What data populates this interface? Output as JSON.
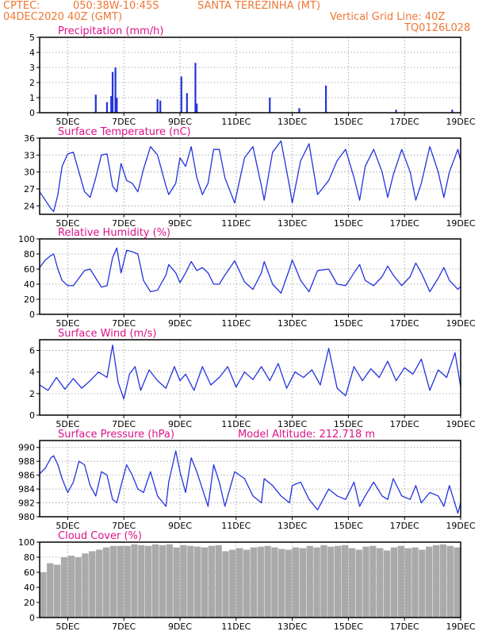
{
  "header": {
    "source": "CPTEC:",
    "coords": "050:38W-10:45S",
    "station": "SANTA TEREZINHA (MT)",
    "init": "04DEC2020 40Z (GMT)",
    "grid_note": "Vertical Grid Line: 40Z",
    "model": "TQ0126L028"
  },
  "colors": {
    "header": "#ee7733",
    "title": "#dd1188",
    "line": "#2233dd",
    "bar": "#2233dd",
    "cloud": "#aaaaaa",
    "grid": "#999999"
  },
  "x_axis": {
    "range": [
      4.0,
      19.0
    ],
    "tick_positions": [
      5,
      7,
      9,
      11,
      13,
      15,
      17,
      19
    ],
    "tick_labels": [
      "5DEC",
      "7DEC",
      "9DEC",
      "11DEC",
      "13DEC",
      "15DEC",
      "17DEC",
      "19DEC"
    ]
  },
  "chart_data": [
    {
      "type": "bar",
      "title": "Precipitation (mm/h)",
      "ylim": [
        0,
        5
      ],
      "yticks": [
        0,
        1,
        2,
        3,
        4,
        5
      ],
      "x": [
        6.0,
        6.4,
        6.55,
        6.6,
        6.7,
        6.75,
        8.2,
        8.3,
        9.05,
        9.25,
        9.55,
        9.6,
        12.2,
        13.25,
        14.2,
        16.7,
        18.7
      ],
      "values": [
        1.2,
        0.7,
        1.1,
        2.7,
        3.0,
        1.0,
        0.9,
        0.8,
        2.4,
        1.3,
        3.3,
        0.6,
        1.0,
        0.3,
        1.8,
        0.2,
        0.2
      ]
    },
    {
      "type": "line",
      "title": "Surface Temperature (nC)",
      "ylim": [
        22.5,
        36
      ],
      "yticks": [
        24,
        27,
        30,
        33,
        36
      ],
      "x": [
        4.0,
        4.2,
        4.4,
        4.5,
        4.65,
        4.8,
        5.0,
        5.2,
        5.4,
        5.6,
        5.8,
        6.0,
        6.2,
        6.4,
        6.6,
        6.75,
        6.9,
        7.1,
        7.3,
        7.5,
        7.7,
        7.95,
        8.2,
        8.5,
        8.6,
        8.85,
        9.0,
        9.2,
        9.4,
        9.6,
        9.8,
        10.0,
        10.2,
        10.4,
        10.6,
        10.95,
        11.3,
        11.6,
        11.9,
        12.0,
        12.3,
        12.6,
        12.9,
        13.0,
        13.3,
        13.6,
        13.9,
        14.3,
        14.6,
        14.9,
        15.2,
        15.4,
        15.6,
        15.9,
        16.2,
        16.4,
        16.6,
        16.9,
        17.2,
        17.4,
        17.6,
        17.9,
        18.2,
        18.4,
        18.6,
        18.9,
        19.0
      ],
      "values": [
        26.5,
        25.0,
        23.5,
        23.0,
        26.0,
        31.0,
        33.2,
        33.5,
        30.0,
        26.5,
        25.5,
        29.0,
        33.0,
        33.2,
        27.5,
        26.5,
        31.5,
        28.5,
        28.0,
        26.5,
        30.5,
        34.5,
        33.0,
        27.5,
        26.0,
        28.0,
        32.5,
        31.0,
        34.5,
        29.0,
        26.0,
        28.0,
        34.0,
        34.0,
        29.0,
        24.5,
        32.5,
        34.5,
        27.5,
        25.0,
        33.5,
        35.5,
        27.5,
        24.5,
        32.0,
        35.0,
        26.0,
        28.5,
        32.0,
        34.0,
        29.0,
        25.0,
        31.0,
        34.0,
        30.0,
        25.5,
        29.5,
        34.0,
        30.0,
        25.0,
        28.0,
        34.5,
        30.0,
        25.5,
        30.0,
        34.0,
        32.0
      ]
    },
    {
      "type": "line",
      "title": "Relative Humidity (%)",
      "ylim": [
        0,
        100
      ],
      "yticks": [
        0,
        20,
        40,
        60,
        80,
        100
      ],
      "x": [
        4.0,
        4.2,
        4.4,
        4.5,
        4.65,
        4.8,
        5.0,
        5.2,
        5.4,
        5.6,
        5.8,
        6.0,
        6.2,
        6.4,
        6.6,
        6.75,
        6.9,
        7.1,
        7.3,
        7.5,
        7.7,
        7.95,
        8.2,
        8.5,
        8.6,
        8.85,
        9.0,
        9.2,
        9.4,
        9.6,
        9.8,
        10.0,
        10.2,
        10.4,
        10.6,
        10.95,
        11.3,
        11.6,
        11.9,
        12.0,
        12.3,
        12.6,
        12.9,
        13.0,
        13.3,
        13.6,
        13.9,
        14.3,
        14.6,
        14.9,
        15.2,
        15.4,
        15.6,
        15.9,
        16.2,
        16.4,
        16.6,
        16.9,
        17.2,
        17.4,
        17.6,
        17.9,
        18.2,
        18.4,
        18.6,
        18.9,
        19.0
      ],
      "values": [
        62,
        72,
        78,
        80,
        60,
        45,
        38,
        38,
        48,
        58,
        60,
        48,
        36,
        38,
        75,
        88,
        55,
        85,
        83,
        80,
        45,
        30,
        32,
        52,
        66,
        55,
        42,
        55,
        70,
        58,
        62,
        55,
        40,
        40,
        52,
        71,
        43,
        33,
        55,
        70,
        40,
        28,
        60,
        72,
        45,
        30,
        58,
        60,
        40,
        38,
        55,
        66,
        45,
        38,
        50,
        64,
        52,
        38,
        50,
        68,
        55,
        30,
        48,
        62,
        45,
        33,
        37
      ]
    },
    {
      "type": "line",
      "title": "Surface Wind (m/s)",
      "ylim": [
        0,
        7
      ],
      "yticks": [
        0,
        2,
        4,
        6
      ],
      "x": [
        4.0,
        4.3,
        4.6,
        4.9,
        5.2,
        5.5,
        5.8,
        6.1,
        6.4,
        6.6,
        6.8,
        7.0,
        7.2,
        7.4,
        7.6,
        7.9,
        8.2,
        8.5,
        8.8,
        9.0,
        9.2,
        9.5,
        9.8,
        10.1,
        10.4,
        10.7,
        11.0,
        11.3,
        11.6,
        11.9,
        12.2,
        12.5,
        12.8,
        13.1,
        13.4,
        13.7,
        14.0,
        14.3,
        14.6,
        14.9,
        15.2,
        15.5,
        15.8,
        16.1,
        16.4,
        16.7,
        17.0,
        17.3,
        17.6,
        17.9,
        18.2,
        18.5,
        18.8,
        19.0
      ],
      "values": [
        2.8,
        2.3,
        3.5,
        2.4,
        3.4,
        2.5,
        3.2,
        4.0,
        3.5,
        6.5,
        3.0,
        1.5,
        3.8,
        4.5,
        2.3,
        4.2,
        3.2,
        2.5,
        4.5,
        3.2,
        3.8,
        2.3,
        4.5,
        2.8,
        3.5,
        4.5,
        2.6,
        4.0,
        3.3,
        4.5,
        3.2,
        4.8,
        2.5,
        4.0,
        3.5,
        4.2,
        2.8,
        6.2,
        2.5,
        1.8,
        4.5,
        3.2,
        4.3,
        3.5,
        5.0,
        3.2,
        4.4,
        3.8,
        5.2,
        2.3,
        4.2,
        3.5,
        5.8,
        2.6
      ]
    },
    {
      "type": "line",
      "title": "Surface Pressure (hPa)",
      "annotation": "Model Altitude: 212.718 m",
      "ylim": [
        980,
        991
      ],
      "yticks": [
        980,
        982,
        984,
        986,
        988,
        990
      ],
      "x": [
        4.0,
        4.2,
        4.4,
        4.5,
        4.65,
        4.8,
        5.0,
        5.2,
        5.4,
        5.6,
        5.8,
        6.0,
        6.2,
        6.4,
        6.6,
        6.75,
        6.9,
        7.1,
        7.3,
        7.5,
        7.7,
        7.95,
        8.2,
        8.5,
        8.6,
        8.85,
        9.0,
        9.2,
        9.4,
        9.6,
        9.8,
        10.0,
        10.2,
        10.4,
        10.6,
        10.95,
        11.3,
        11.6,
        11.9,
        12.0,
        12.3,
        12.6,
        12.9,
        13.0,
        13.3,
        13.6,
        13.9,
        14.3,
        14.6,
        14.9,
        15.2,
        15.4,
        15.6,
        15.9,
        16.2,
        16.4,
        16.6,
        16.9,
        17.2,
        17.4,
        17.6,
        17.9,
        18.2,
        18.4,
        18.6,
        18.9,
        19.0
      ],
      "values": [
        986.2,
        987.0,
        988.5,
        988.8,
        987.5,
        985.5,
        983.5,
        985.0,
        988.0,
        987.5,
        984.5,
        983.0,
        986.5,
        986.0,
        982.5,
        982.0,
        984.5,
        987.5,
        986.0,
        984.0,
        983.5,
        986.5,
        983.0,
        981.5,
        985.0,
        989.5,
        986.5,
        983.5,
        988.5,
        986.5,
        984.0,
        981.5,
        987.5,
        985.0,
        981.5,
        986.5,
        985.5,
        983.0,
        982.0,
        985.5,
        984.5,
        983.0,
        982.0,
        984.5,
        985.0,
        982.5,
        981.0,
        984.0,
        983.0,
        982.5,
        985.0,
        981.5,
        983.0,
        985.0,
        983.0,
        982.5,
        985.5,
        983.0,
        982.5,
        984.5,
        982.0,
        983.5,
        983.0,
        981.5,
        984.5,
        980.5,
        982.0
      ]
    },
    {
      "type": "bar",
      "title": "Cloud Cover (%)",
      "ylim": [
        0,
        100
      ],
      "yticks": [
        0,
        20,
        40,
        60,
        80,
        100
      ],
      "x": [
        4.125,
        4.375,
        4.625,
        4.875,
        5.125,
        5.375,
        5.625,
        5.875,
        6.125,
        6.375,
        6.625,
        6.875,
        7.125,
        7.375,
        7.625,
        7.875,
        8.125,
        8.375,
        8.625,
        8.875,
        9.125,
        9.375,
        9.625,
        9.875,
        10.125,
        10.375,
        10.625,
        10.875,
        11.125,
        11.375,
        11.625,
        11.875,
        12.125,
        12.375,
        12.625,
        12.875,
        13.125,
        13.375,
        13.625,
        13.875,
        14.125,
        14.375,
        14.625,
        14.875,
        15.125,
        15.375,
        15.625,
        15.875,
        16.125,
        16.375,
        16.625,
        16.875,
        17.125,
        17.375,
        17.625,
        17.875,
        18.125,
        18.375,
        18.625,
        18.875
      ],
      "values": [
        60,
        72,
        70,
        80,
        82,
        80,
        85,
        88,
        90,
        93,
        95,
        95,
        95,
        97,
        96,
        95,
        97,
        96,
        97,
        93,
        96,
        95,
        94,
        93,
        95,
        96,
        88,
        90,
        92,
        90,
        93,
        94,
        95,
        93,
        91,
        90,
        93,
        92,
        95,
        93,
        96,
        94,
        95,
        96,
        92,
        90,
        94,
        95,
        92,
        89,
        93,
        95,
        92,
        93,
        90,
        94,
        96,
        97,
        95,
        93
      ]
    }
  ]
}
